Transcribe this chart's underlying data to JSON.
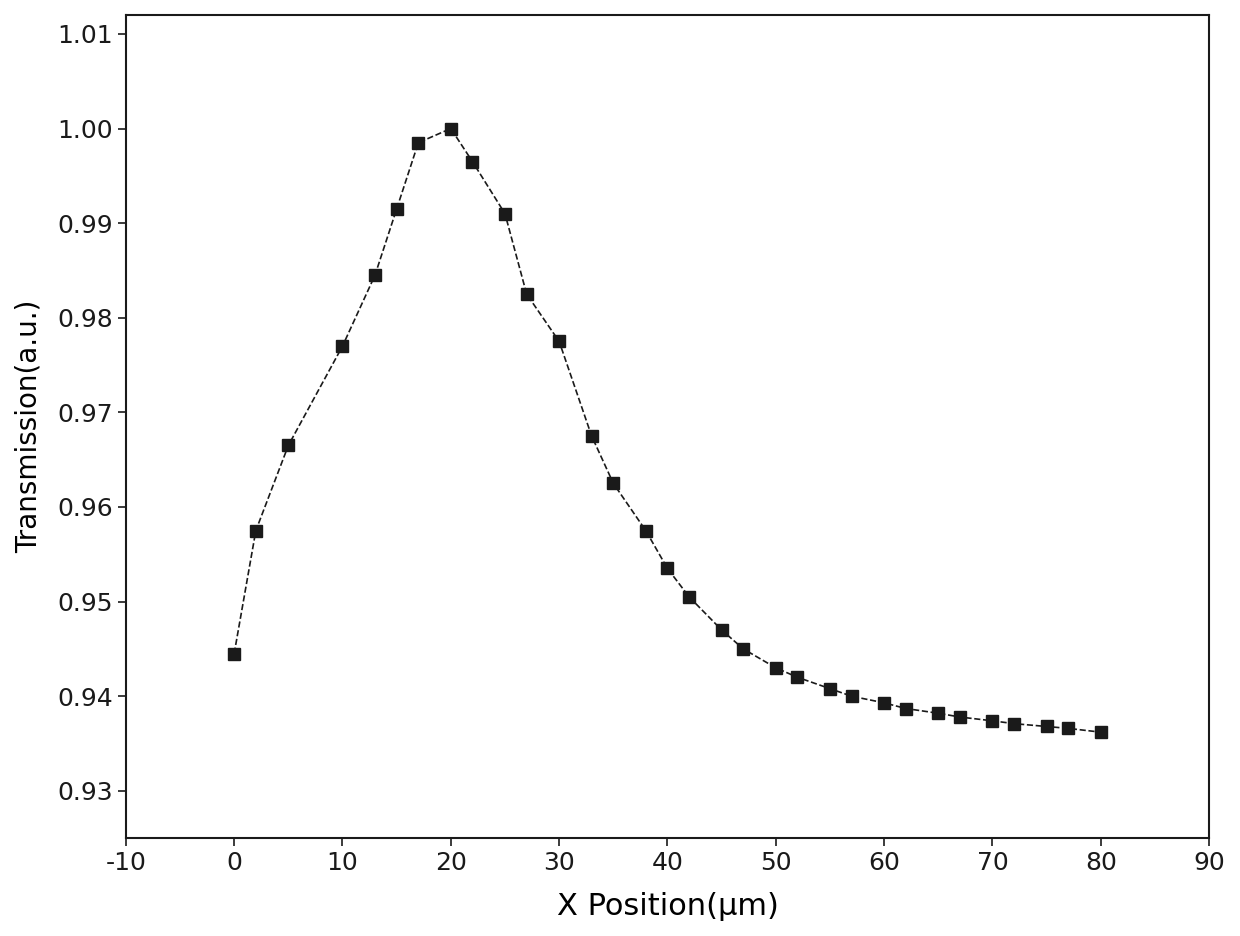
{
  "x": [
    0,
    2,
    5,
    10,
    13,
    15,
    17,
    20,
    22,
    25,
    27,
    30,
    33,
    35,
    38,
    40,
    42,
    45,
    47,
    50,
    52,
    55,
    57,
    60,
    62,
    65,
    67,
    70,
    72,
    75,
    77,
    80
  ],
  "y": [
    0.9445,
    0.9575,
    0.9665,
    0.977,
    0.9845,
    0.9915,
    0.9985,
    1.0,
    0.9965,
    0.991,
    0.9825,
    0.9775,
    0.9675,
    0.9625,
    0.9575,
    0.9535,
    0.9505,
    0.947,
    0.945,
    0.943,
    0.942,
    0.9408,
    0.94,
    0.9393,
    0.9387,
    0.9382,
    0.9378,
    0.9374,
    0.9371,
    0.9368,
    0.9366,
    0.9362
  ],
  "xlabel": "X Position(μm)",
  "ylabel": "Transmission(a.u.)",
  "xlim": [
    -10,
    90
  ],
  "ylim": [
    0.925,
    1.012
  ],
  "xticks": [
    -10,
    0,
    10,
    20,
    30,
    40,
    50,
    60,
    70,
    80,
    90
  ],
  "yticks": [
    0.93,
    0.94,
    0.95,
    0.96,
    0.97,
    0.98,
    0.99,
    1.0,
    1.01
  ],
  "line_color": "#1a1a1a",
  "marker": "s",
  "marker_size": 8,
  "line_style": "--",
  "line_width": 1.2,
  "xlabel_fontsize": 22,
  "ylabel_fontsize": 20,
  "tick_fontsize": 18,
  "background_color": "#ffffff",
  "axes_color": "#1a1a1a"
}
